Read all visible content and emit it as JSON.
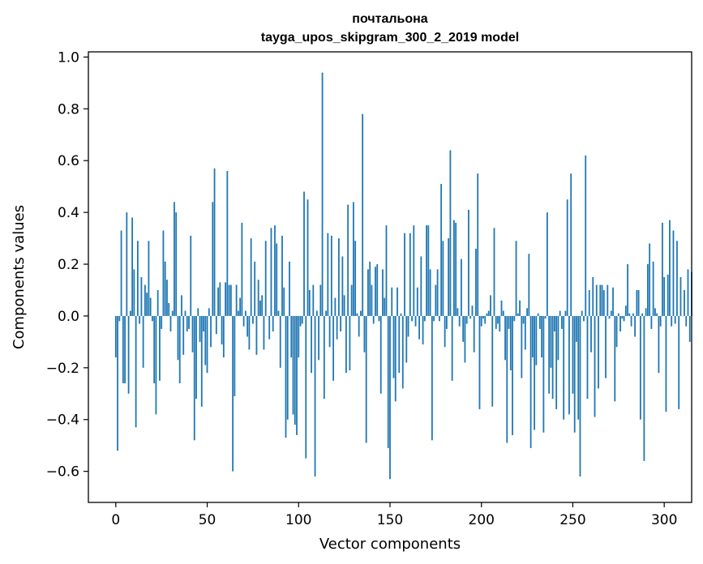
{
  "chart_data": {
    "type": "bar",
    "title": "почтальона",
    "subtitle": "tayga_upos_skipgram_300_2_2019 model",
    "xlabel": "Vector components",
    "ylabel": "Components values",
    "xlim": [
      -15,
      315
    ],
    "ylim": [
      -0.72,
      1.02
    ],
    "xticks": [
      "0",
      "50",
      "100",
      "150",
      "200",
      "250",
      "300"
    ],
    "yticks": [
      "−0.6",
      "−0.4",
      "−0.2",
      "0.0",
      "0.2",
      "0.4",
      "0.6",
      "0.8",
      "1.0"
    ],
    "bar_color": "#1f77b4",
    "grid": false,
    "legend": "none",
    "values": [
      -0.16,
      -0.52,
      -0.02,
      0.33,
      -0.26,
      -0.26,
      0.4,
      -0.3,
      0.02,
      0.38,
      0.18,
      -0.43,
      0.29,
      -0.03,
      0.15,
      -0.2,
      0.12,
      0.09,
      0.29,
      0.07,
      -0.02,
      -0.26,
      -0.38,
      0.1,
      -0.25,
      -0.05,
      0.33,
      0.21,
      0.14,
      0.05,
      -0.06,
      0.02,
      0.44,
      0.4,
      -0.17,
      -0.26,
      0.08,
      -0.15,
      0.02,
      -0.06,
      -0.05,
      0.31,
      -0.14,
      -0.48,
      -0.32,
      0.03,
      -0.1,
      -0.35,
      -0.06,
      -0.19,
      -0.22,
      0.03,
      -0.12,
      0.44,
      0.57,
      -0.07,
      0.11,
      0.13,
      -0.11,
      -0.16,
      0.13,
      0.56,
      0.12,
      0.12,
      -0.6,
      -0.31,
      0.12,
      0.02,
      0.07,
      0.36,
      -0.04,
      0.02,
      -0.08,
      -0.13,
      0.3,
      -0.03,
      0.21,
      -0.15,
      0.14,
      0.06,
      0.08,
      -0.13,
      0.29,
      0.0,
      -0.09,
      0.34,
      -0.06,
      0.35,
      0.28,
      0.02,
      -0.2,
      0.31,
      0.11,
      -0.47,
      -0.4,
      0.21,
      -0.16,
      -0.38,
      -0.42,
      -0.46,
      -0.16,
      -0.04,
      -0.03,
      0.48,
      -0.55,
      0.45,
      0.1,
      -0.22,
      0.12,
      -0.62,
      0.02,
      -0.17,
      0.12,
      0.94,
      -0.32,
      0.02,
      0.32,
      -0.12,
      0.31,
      -0.25,
      0.07,
      -0.09,
      0.3,
      -0.06,
      0.23,
      0.08,
      -0.22,
      0.43,
      -0.21,
      0.12,
      0.44,
      0.29,
      0.01,
      -0.08,
      0.02,
      0.78,
      -0.14,
      -0.49,
      0.18,
      0.21,
      0.12,
      -0.03,
      0.19,
      0.2,
      -0.02,
      -0.3,
      0.18,
      0.07,
      0.35,
      -0.51,
      -0.63,
      0.11,
      -0.24,
      -0.33,
      0.11,
      -0.22,
      0.01,
      -0.28,
      0.32,
      -0.18,
      -0.08,
      0.32,
      -0.02,
      0.35,
      -0.04,
      0.11,
      -0.09,
      0.23,
      -0.11,
      -0.02,
      0.35,
      0.35,
      0.18,
      -0.48,
      -0.02,
      0.12,
      0.18,
      -0.02,
      0.51,
      0.29,
      -0.12,
      -0.05,
      0.3,
      0.64,
      -0.25,
      0.37,
      0.36,
      0.03,
      -0.04,
      0.22,
      -0.1,
      -0.18,
      -0.03,
      0.41,
      -0.01,
      0.04,
      -0.14,
      0.26,
      0.55,
      -0.36,
      -0.04,
      -0.01,
      -0.03,
      0.01,
      0.02,
      0.08,
      -0.35,
      0.34,
      -0.05,
      -0.03,
      -0.06,
      0.06,
      0.02,
      -0.17,
      -0.49,
      -0.05,
      -0.21,
      -0.46,
      -0.02,
      0.29,
      0.01,
      0.06,
      -0.24,
      -0.03,
      -0.13,
      0.03,
      0.24,
      -0.51,
      -0.16,
      -0.44,
      -0.19,
      0.01,
      -0.05,
      -0.16,
      -0.45,
      -0.01,
      0.4,
      -0.3,
      -0.2,
      -0.32,
      -0.06,
      -0.36,
      -0.17,
      0.02,
      -0.05,
      -0.4,
      0.02,
      0.45,
      -0.38,
      0.55,
      -0.3,
      -0.45,
      -0.1,
      -0.4,
      -0.62,
      0.02,
      -0.02,
      0.62,
      -0.32,
      0.1,
      -0.14,
      0.15,
      -0.39,
      0.12,
      -0.28,
      0.12,
      0.12,
      0.1,
      -0.24,
      0.12,
      -0.01,
      0.02,
      0.11,
      -0.33,
      -0.12,
      0.01,
      -0.06,
      -0.01,
      -0.02,
      0.04,
      0.2,
      0.01,
      -0.04,
      0.01,
      -0.08,
      0.1,
      0.1,
      -0.4,
      0.01,
      -0.56,
      0.03,
      0.2,
      0.28,
      -0.05,
      0.21,
      0.03,
      0.01,
      -0.22,
      -0.04,
      0.36,
      0.15,
      -0.37,
      0.16,
      0.37,
      -0.04,
      0.33,
      -0.03,
      0.29,
      -0.36,
      0.15,
      0.0,
      0.1,
      -0.04,
      0.18,
      -0.1,
      0.17
    ]
  }
}
